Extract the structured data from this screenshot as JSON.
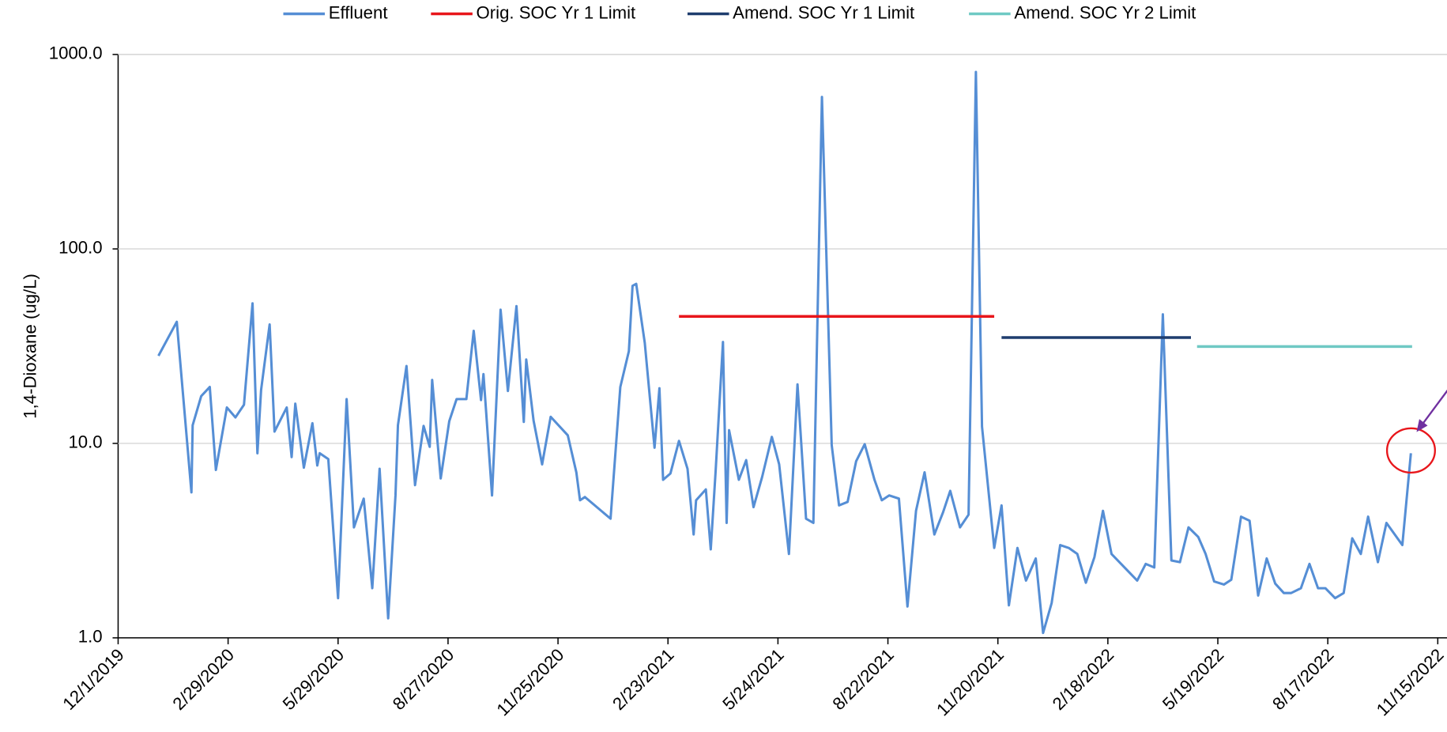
{
  "chart_data": {
    "type": "line",
    "y_label": "1,4-Dioxane (ug/L)",
    "log_scale_y": true,
    "grid": true,
    "legend": "top",
    "xlim": [
      "2019-12-01",
      "2022-11-15"
    ],
    "xticks": [
      {
        "value": "2019-12-01",
        "label": "12/1/2019"
      },
      {
        "value": "2020-02-29",
        "label": "2/29/2020"
      },
      {
        "value": "2020-05-29",
        "label": "5/29/2020"
      },
      {
        "value": "2020-08-27",
        "label": "8/27/2020"
      },
      {
        "value": "2020-11-25",
        "label": "11/25/2020"
      },
      {
        "value": "2021-02-23",
        "label": "2/23/2021"
      },
      {
        "value": "2021-05-24",
        "label": "5/24/2021"
      },
      {
        "value": "2021-08-22",
        "label": "8/22/2021"
      },
      {
        "value": "2021-11-20",
        "label": "11/20/2021"
      },
      {
        "value": "2022-02-18",
        "label": "2/18/2022"
      },
      {
        "value": "2022-05-19",
        "label": "5/19/2022"
      },
      {
        "value": "2022-08-17",
        "label": "8/17/2022"
      },
      {
        "value": "2022-11-15",
        "label": "11/15/2022"
      }
    ],
    "ylim": [
      1,
      1000
    ],
    "yticks": [
      {
        "value": 1,
        "label": "1.0"
      },
      {
        "value": 10,
        "label": "10.0"
      },
      {
        "value": 100,
        "label": "100.0"
      },
      {
        "value": 1000,
        "label": "1000.0"
      }
    ],
    "series": [
      {
        "name": "Effluent",
        "color": "#558ed5",
        "x": [
          "2020-01-03",
          "2020-01-18",
          "2020-01-30",
          "2020-01-31",
          "2020-02-07",
          "2020-02-14",
          "2020-02-19",
          "2020-02-28",
          "2020-03-06",
          "2020-03-13",
          "2020-03-20",
          "2020-03-24",
          "2020-03-27",
          "2020-04-03",
          "2020-04-07",
          "2020-04-17",
          "2020-04-21",
          "2020-04-24",
          "2020-05-01",
          "2020-05-08",
          "2020-05-12",
          "2020-05-14",
          "2020-05-21",
          "2020-05-29",
          "2020-06-05",
          "2020-06-11",
          "2020-06-19",
          "2020-06-26",
          "2020-07-02",
          "2020-07-09",
          "2020-07-15",
          "2020-07-17",
          "2020-07-24",
          "2020-07-31",
          "2020-08-07",
          "2020-08-12",
          "2020-08-14",
          "2020-08-21",
          "2020-08-28",
          "2020-09-03",
          "2020-09-11",
          "2020-09-17",
          "2020-09-23",
          "2020-09-25",
          "2020-10-02",
          "2020-10-09",
          "2020-10-15",
          "2020-10-22",
          "2020-10-28",
          "2020-10-30",
          "2020-11-05",
          "2020-11-12",
          "2020-11-19",
          "2020-12-03",
          "2020-12-10",
          "2020-12-13",
          "2020-12-17",
          "2021-01-07",
          "2021-01-15",
          "2021-01-22",
          "2021-01-25",
          "2021-01-28",
          "2021-02-04",
          "2021-02-12",
          "2021-02-16",
          "2021-02-19",
          "2021-02-25",
          "2021-03-04",
          "2021-03-11",
          "2021-03-16",
          "2021-03-18",
          "2021-03-26",
          "2021-03-30",
          "2021-04-03",
          "2021-04-09",
          "2021-04-12",
          "2021-04-14",
          "2021-04-22",
          "2021-04-28",
          "2021-05-04",
          "2021-05-11",
          "2021-05-19",
          "2021-05-25",
          "2021-06-02",
          "2021-06-09",
          "2021-06-16",
          "2021-06-22",
          "2021-06-29",
          "2021-07-07",
          "2021-07-13",
          "2021-07-20",
          "2021-07-27",
          "2021-08-03",
          "2021-08-11",
          "2021-08-17",
          "2021-08-23",
          "2021-08-31",
          "2021-09-07",
          "2021-09-14",
          "2021-09-21",
          "2021-09-29",
          "2021-10-06",
          "2021-10-12",
          "2021-10-20",
          "2021-10-27",
          "2021-11-02",
          "2021-11-07",
          "2021-11-17",
          "2021-11-23",
          "2021-11-29",
          "2021-12-06",
          "2021-12-13",
          "2021-12-21",
          "2021-12-27",
          "2022-01-03",
          "2022-01-10",
          "2022-01-17",
          "2022-01-24",
          "2022-01-31",
          "2022-02-07",
          "2022-02-14",
          "2022-02-21",
          "2022-03-14",
          "2022-03-21",
          "2022-03-28",
          "2022-04-04",
          "2022-04-11",
          "2022-04-18",
          "2022-04-25",
          "2022-05-03",
          "2022-05-09",
          "2022-05-16",
          "2022-05-24",
          "2022-05-30",
          "2022-06-07",
          "2022-06-14",
          "2022-06-21",
          "2022-06-28",
          "2022-07-05",
          "2022-07-12",
          "2022-07-18",
          "2022-07-26",
          "2022-08-02",
          "2022-08-09",
          "2022-08-15",
          "2022-08-23",
          "2022-08-30",
          "2022-09-06",
          "2022-09-13",
          "2022-09-19",
          "2022-09-27",
          "2022-10-04",
          "2022-10-17",
          "2022-10-24"
        ],
        "values": [
          28.2,
          42.2,
          5.6,
          12.4,
          17.5,
          19.5,
          7.3,
          15.3,
          13.6,
          15.8,
          52.5,
          8.9,
          18.8,
          40.9,
          11.5,
          15.3,
          8.5,
          16.0,
          7.5,
          12.7,
          7.7,
          8.9,
          8.3,
          1.6,
          16.9,
          3.7,
          5.2,
          1.8,
          7.4,
          1.26,
          5.4,
          12.4,
          25.0,
          6.1,
          12.3,
          9.6,
          21.2,
          6.6,
          13.0,
          16.9,
          16.9,
          37.9,
          16.7,
          22.7,
          5.4,
          48.7,
          18.6,
          50.8,
          12.9,
          27.0,
          13.1,
          7.8,
          13.7,
          11.0,
          7.1,
          5.1,
          5.3,
          4.1,
          19.5,
          29.8,
          64.6,
          66.1,
          32.9,
          9.5,
          19.2,
          6.5,
          7.0,
          10.3,
          7.4,
          3.4,
          5.1,
          5.8,
          2.85,
          7.2,
          33.2,
          3.9,
          11.7,
          6.5,
          8.2,
          4.7,
          6.7,
          10.8,
          7.8,
          2.7,
          20.1,
          4.1,
          3.9,
          605,
          9.8,
          4.8,
          5.0,
          8.1,
          9.9,
          6.5,
          5.1,
          5.4,
          5.2,
          1.45,
          4.5,
          7.1,
          3.4,
          4.4,
          5.7,
          3.7,
          4.3,
          813,
          12.2,
          2.9,
          4.8,
          1.47,
          2.9,
          1.97,
          2.56,
          1.06,
          1.51,
          3.0,
          2.9,
          2.7,
          1.92,
          2.6,
          4.5,
          2.7,
          1.97,
          2.4,
          2.3,
          46.1,
          2.5,
          2.45,
          3.7,
          3.3,
          2.7,
          1.95,
          1.88,
          1.99,
          4.2,
          4.0,
          1.65,
          2.56,
          1.9,
          1.7,
          1.7,
          1.8,
          2.4,
          1.8,
          1.8,
          1.6,
          1.7,
          3.25,
          2.7,
          4.2,
          2.45,
          3.9,
          3.0,
          8.9
        ]
      },
      {
        "name": "Orig. SOC Yr 1 Limit",
        "color": "#e8161b",
        "x": [
          "2021-03-04",
          "2021-11-17"
        ],
        "values": [
          45,
          45
        ]
      },
      {
        "name": "Amend. SOC Yr 1 Limit",
        "color": "#1f3d6e",
        "x": [
          "2021-11-23",
          "2022-04-27"
        ],
        "values": [
          35,
          35
        ]
      },
      {
        "name": "Amend. SOC Yr 2 Limit",
        "color": "#6fc9c4",
        "x": [
          "2022-05-02",
          "2022-10-25"
        ],
        "values": [
          31.5,
          31.5
        ]
      }
    ]
  }
}
